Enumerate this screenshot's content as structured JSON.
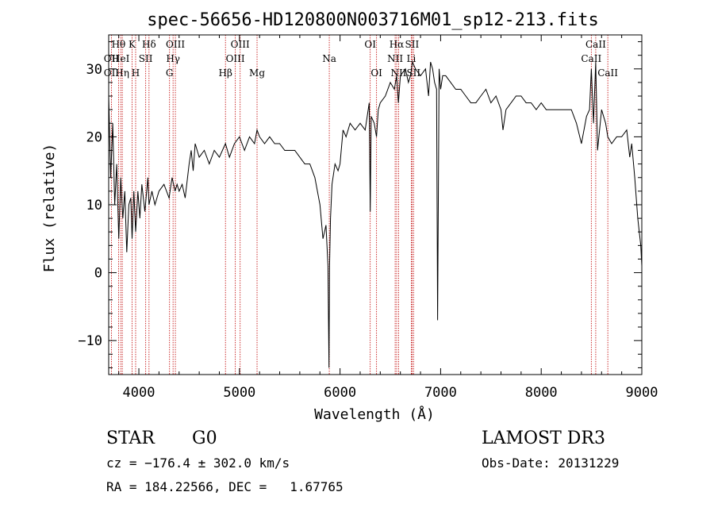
{
  "chart_data": {
    "type": "line",
    "title": "spec-56656-HD120800N003716M01_sp12-213.fits",
    "xlabel": "Wavelength (Å)",
    "ylabel": "Flux (relative)",
    "xlim": [
      3700,
      9000
    ],
    "ylim": [
      -15,
      35
    ],
    "xticks": [
      "4000",
      "5000",
      "6000",
      "7000",
      "8000",
      "9000"
    ],
    "xtick_values": [
      4000,
      5000,
      6000,
      7000,
      8000,
      9000
    ],
    "yticks": [
      "−10",
      "0",
      "10",
      "20",
      "30"
    ],
    "ytick_values": [
      -10,
      0,
      10,
      20,
      30
    ],
    "grid": false,
    "line_color": "#000000",
    "marker_color": "#c00000",
    "spectrum": {
      "x": [
        3700,
        3720,
        3740,
        3760,
        3780,
        3800,
        3820,
        3840,
        3860,
        3880,
        3900,
        3920,
        3933,
        3950,
        3968,
        3990,
        4010,
        4030,
        4060,
        4090,
        4101,
        4130,
        4160,
        4200,
        4250,
        4300,
        4330,
        4360,
        4380,
        4400,
        4430,
        4460,
        4500,
        4520,
        4540,
        4560,
        4600,
        4650,
        4700,
        4750,
        4800,
        4861,
        4900,
        4950,
        5000,
        5050,
        5100,
        5150,
        5175,
        5200,
        5250,
        5300,
        5350,
        5400,
        5450,
        5500,
        5550,
        5600,
        5650,
        5700,
        5750,
        5800,
        5830,
        5860,
        5880,
        5890,
        5896,
        5905,
        5920,
        5950,
        5980,
        6000,
        6030,
        6060,
        6100,
        6150,
        6200,
        6250,
        6290,
        6300,
        6310,
        6340,
        6363,
        6380,
        6400,
        6450,
        6500,
        6540,
        6563,
        6580,
        6600,
        6650,
        6680,
        6700,
        6720,
        6750,
        6800,
        6850,
        6880,
        6900,
        6920,
        6940,
        6960,
        6970,
        6985,
        7000,
        7020,
        7050,
        7100,
        7150,
        7200,
        7250,
        7300,
        7350,
        7400,
        7450,
        7500,
        7550,
        7600,
        7620,
        7650,
        7700,
        7750,
        7800,
        7850,
        7900,
        7950,
        8000,
        8050,
        8100,
        8150,
        8200,
        8250,
        8300,
        8350,
        8400,
        8450,
        8480,
        8498,
        8520,
        8542,
        8560,
        8600,
        8640,
        8662,
        8700,
        8750,
        8800,
        8850,
        8880,
        8900,
        8930,
        8960,
        8990,
        9000
      ],
      "y": [
        26,
        14,
        22,
        10,
        16,
        5,
        14,
        8,
        12,
        3,
        10,
        11,
        5,
        12,
        6,
        12,
        8,
        13,
        9,
        14,
        10,
        12,
        10,
        12,
        13,
        11,
        14,
        12,
        13,
        12,
        13,
        11,
        16,
        18,
        15,
        19,
        17,
        18,
        16,
        18,
        17,
        19,
        17,
        19,
        20,
        18,
        20,
        19,
        21,
        20,
        19,
        20,
        19,
        19,
        18,
        18,
        18,
        17,
        16,
        16,
        14,
        10,
        5,
        7,
        1,
        -14,
        1,
        8,
        13,
        16,
        15,
        16,
        21,
        20,
        22,
        21,
        22,
        21,
        25,
        9,
        23,
        22,
        20,
        24,
        25,
        26,
        28,
        27,
        29,
        25,
        29,
        30,
        28,
        29,
        31,
        30,
        29,
        30,
        26,
        31,
        30,
        28,
        27,
        -7,
        30,
        27,
        29,
        29,
        28,
        27,
        27,
        26,
        25,
        25,
        26,
        27,
        25,
        26,
        24,
        21,
        24,
        25,
        26,
        26,
        25,
        25,
        24,
        25,
        24,
        24,
        24,
        24,
        24,
        24,
        22,
        19,
        23,
        24,
        30,
        22,
        31,
        18,
        24,
        22,
        20,
        19,
        20,
        20,
        21,
        17,
        19,
        14,
        8,
        4,
        1
      ]
    },
    "lines": [
      {
        "name": "OII",
        "x": 3727,
        "row": 2
      },
      {
        "name": "Hθ",
        "x": 3798,
        "row": 0
      },
      {
        "name": "OII",
        "x": 3727,
        "row": 1
      },
      {
        "name": "HeI",
        "x": 3820,
        "row": 1
      },
      {
        "name": "Hη",
        "x": 3835,
        "row": 2
      },
      {
        "name": "K",
        "x": 3933,
        "row": 0
      },
      {
        "name": "H",
        "x": 3968,
        "row": 2
      },
      {
        "name": "SII",
        "x": 4068,
        "row": 1
      },
      {
        "name": "Hδ",
        "x": 4101,
        "row": 0
      },
      {
        "name": "OIII",
        "x": 4363,
        "row": 0
      },
      {
        "name": "Hγ",
        "x": 4340,
        "row": 1
      },
      {
        "name": "G",
        "x": 4305,
        "row": 2
      },
      {
        "name": "Hβ",
        "x": 4861,
        "row": 2
      },
      {
        "name": "OIII",
        "x": 4959,
        "row": 1
      },
      {
        "name": "OIII",
        "x": 5007,
        "row": 0
      },
      {
        "name": "Mg",
        "x": 5175,
        "row": 2
      },
      {
        "name": "Na",
        "x": 5893,
        "row": 1
      },
      {
        "name": "OI",
        "x": 6300,
        "row": 0
      },
      {
        "name": "OI",
        "x": 6363,
        "row": 2
      },
      {
        "name": "Hα",
        "x": 6563,
        "row": 0
      },
      {
        "name": "NII",
        "x": 6548,
        "row": 1
      },
      {
        "name": "NII",
        "x": 6583,
        "row": 2
      },
      {
        "name": "SII",
        "x": 6716,
        "row": 0
      },
      {
        "name": "Li",
        "x": 6708,
        "row": 1
      },
      {
        "name": "SII",
        "x": 6731,
        "row": 2
      },
      {
        "name": "CaII",
        "x": 8498,
        "row": 1
      },
      {
        "name": "CaII",
        "x": 8542,
        "row": 0
      },
      {
        "name": "CaII",
        "x": 8662,
        "row": 2
      }
    ]
  },
  "info": {
    "class_label": "STAR",
    "subclass": "G0",
    "survey": "LAMOST DR3",
    "cz": "cz = −176.4 ± 302.0 km/s",
    "obs_date": "Obs-Date: 20131229",
    "radec": "RA = 184.22566, DEC =   1.67765"
  }
}
